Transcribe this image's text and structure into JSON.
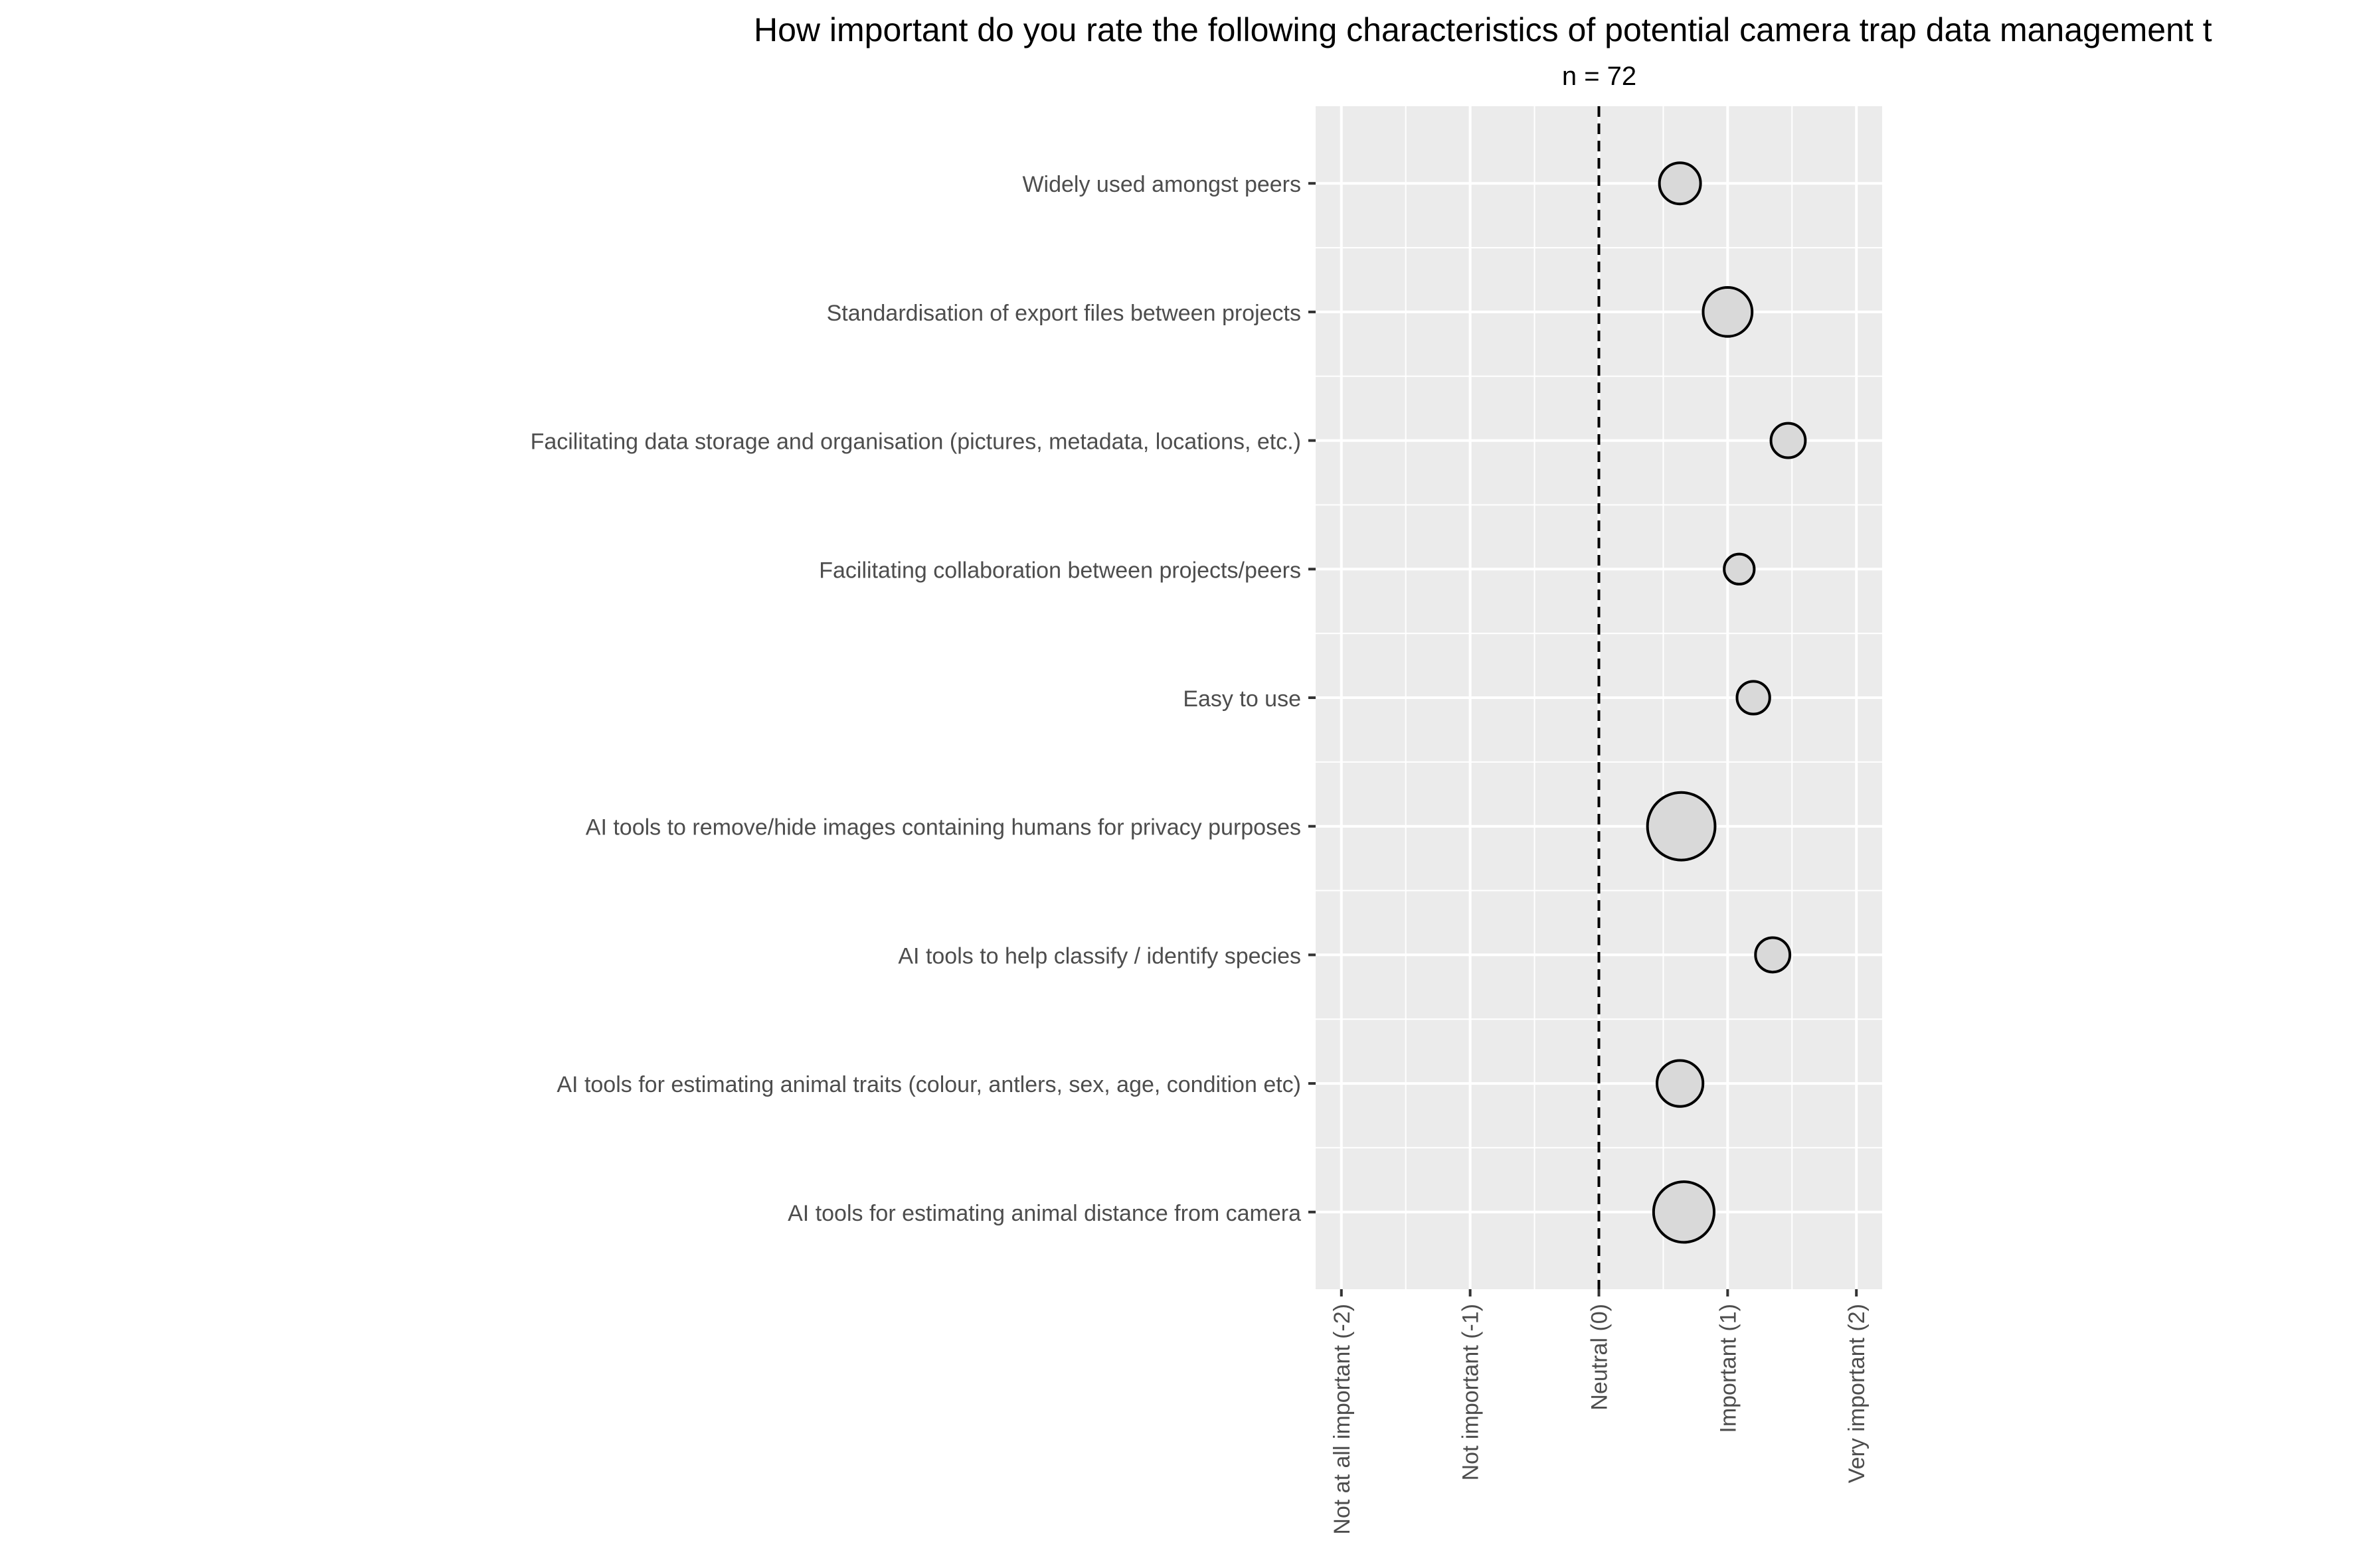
{
  "chart_data": {
    "type": "scatter",
    "title": "How important do you rate the following characteristics of potential camera trap data management t",
    "subtitle": "n = 72",
    "xlabel": "",
    "ylabel": "",
    "xlim": [
      -2.2,
      2.2
    ],
    "x_ticks": [
      {
        "value": -2,
        "label": "Not at all important (-2)"
      },
      {
        "value": -1,
        "label": "Not important (-1)"
      },
      {
        "value": 0,
        "label": "Neutral (0)"
      },
      {
        "value": 1,
        "label": "Important (1)"
      },
      {
        "value": 2,
        "label": "Very important (2)"
      }
    ],
    "reference_line": {
      "x": 0,
      "style": "dashed"
    },
    "grid": true,
    "legend": "none",
    "point_fill": "#d9d9d9",
    "point_stroke": "#000000",
    "panel_background": "#ebebeb",
    "grid_color": "#ffffff",
    "categories": [
      "Widely used amongst peers",
      "Standardisation of export files between projects",
      "Facilitating data storage and organisation (pictures, metadata, locations, etc.)",
      "Facilitating collaboration between projects/peers",
      "Easy to use",
      "AI tools to remove/hide images containing humans for privacy purposes",
      "AI tools to help classify / identify species",
      "AI tools for estimating animal traits (colour, antlers, sex, age, condition etc)",
      "AI tools for estimating animal distance from camera"
    ],
    "points": [
      {
        "category": "Widely used amongst peers",
        "x": 0.63,
        "size": 0.6
      },
      {
        "category": "Standardisation of export files between projects",
        "x": 1.0,
        "size": 0.85
      },
      {
        "category": "Facilitating data storage and organisation (pictures, metadata, locations, etc.)",
        "x": 1.47,
        "size": 0.42
      },
      {
        "category": "Facilitating collaboration between projects/peers",
        "x": 1.09,
        "size": 0.32
      },
      {
        "category": "Easy to use",
        "x": 1.2,
        "size": 0.38
      },
      {
        "category": "AI tools to remove/hide images containing humans for privacy purposes",
        "x": 0.64,
        "size": 1.62
      },
      {
        "category": "AI tools to help classify / identify species",
        "x": 1.35,
        "size": 0.42
      },
      {
        "category": "AI tools for estimating animal traits (colour, antlers, sex, age, condition etc)",
        "x": 0.63,
        "size": 0.75
      },
      {
        "category": "AI tools for estimating animal distance from camera",
        "x": 0.66,
        "size": 1.3
      }
    ]
  }
}
